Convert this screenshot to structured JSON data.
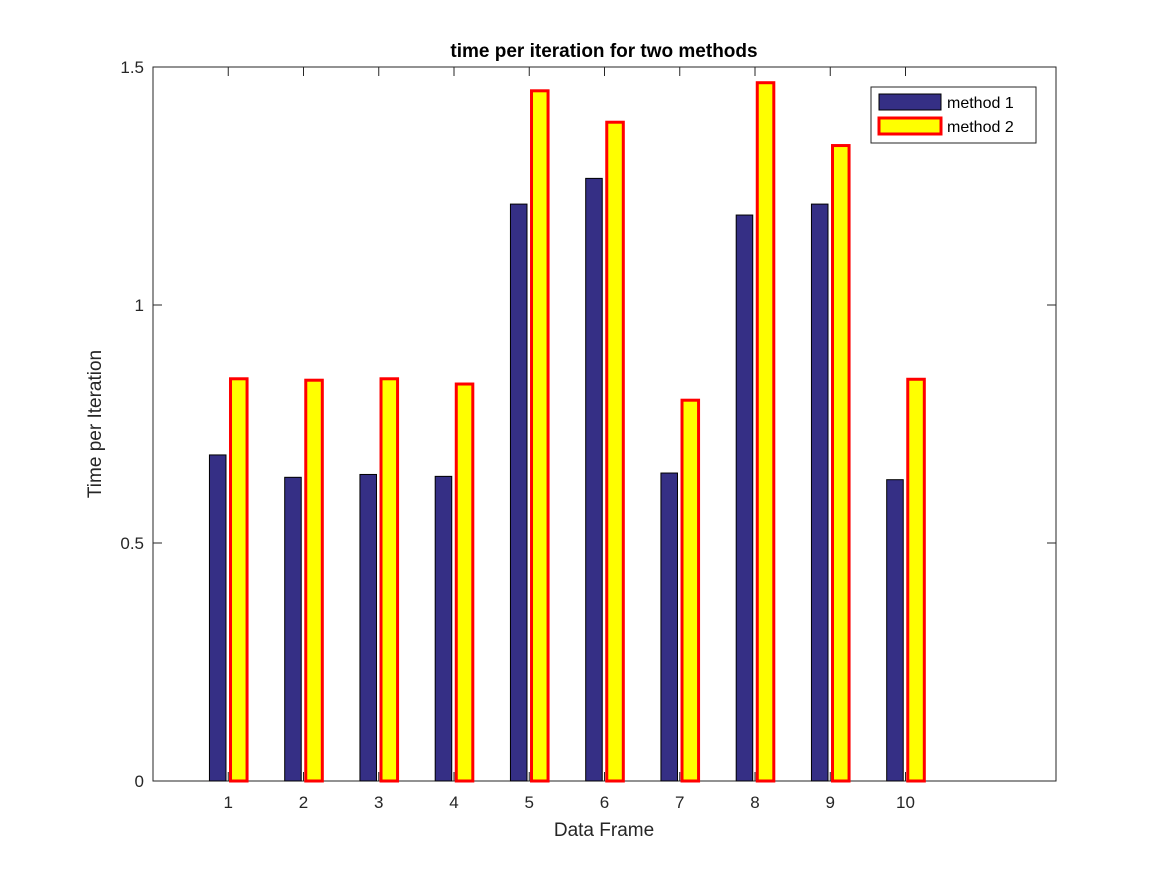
{
  "chart_data": {
    "type": "bar",
    "title": "time per iteration for two methods",
    "xlabel": "Data Frame",
    "ylabel": "Time per Iteration",
    "categories": [
      "1",
      "2",
      "3",
      "4",
      "5",
      "6",
      "7",
      "8",
      "9",
      "10"
    ],
    "x_range": [
      0,
      12
    ],
    "ylim": [
      0,
      1.5
    ],
    "yticks": [
      0,
      0.5,
      1,
      1.5
    ],
    "y_tick_labels": [
      "0",
      "0.5",
      "1",
      "1.5"
    ],
    "grid": false,
    "legend_position": "top-right",
    "series": [
      {
        "name": "method 1",
        "values": [
          0.685,
          0.638,
          0.644,
          0.64,
          1.212,
          1.266,
          0.647,
          1.189,
          1.212,
          0.633
        ],
        "fill": "#352f85",
        "edge": "#000000"
      },
      {
        "name": "method 2",
        "values": [
          0.845,
          0.842,
          0.845,
          0.834,
          1.45,
          1.384,
          0.8,
          1.467,
          1.335,
          0.844
        ],
        "fill": "#ffff00",
        "edge": "#ff0000"
      }
    ]
  }
}
